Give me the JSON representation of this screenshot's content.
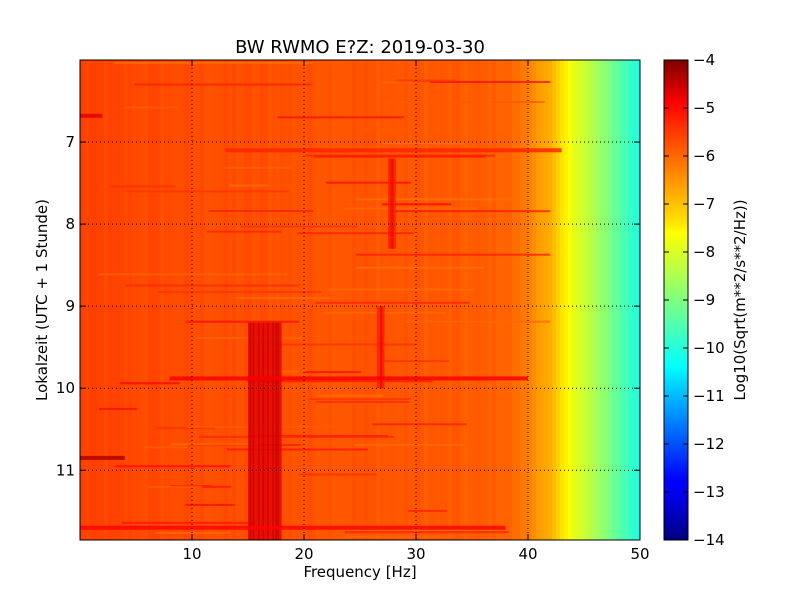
{
  "chart_data": {
    "type": "heatmap",
    "title": "BW RWMO E?Z: 2019-03-30",
    "xlabel": "Frequency [Hz]",
    "ylabel": "Lokalzeit (UTC + 1 Stunde)",
    "colorbar_label": "Log10(Sqrt(m**2/s**2/Hz))",
    "colormap": "jet",
    "xlim": [
      0,
      50
    ],
    "ylim": [
      11.85,
      6.0
    ],
    "clim": [
      -14,
      -4
    ],
    "xticks": [
      10,
      20,
      30,
      40,
      50
    ],
    "yticks": [
      7,
      8,
      9,
      10,
      11
    ],
    "colorbar_ticks": [
      -4,
      -5,
      -6,
      -7,
      -8,
      -9,
      -10,
      -11,
      -12,
      -13,
      -14
    ],
    "grid": true,
    "frequency_profile": {
      "frequency_hz": [
        0,
        10,
        20,
        30,
        38,
        40,
        42,
        43,
        44,
        46,
        48,
        50
      ],
      "level": [
        -5.9,
        -6.0,
        -6.05,
        -6.1,
        -6.2,
        -6.5,
        -7.0,
        -7.5,
        -7.9,
        -8.6,
        -9.3,
        -10.0
      ]
    },
    "features": [
      {
        "label": "band",
        "freq_range": [
          15,
          18
        ],
        "time_range": [
          9.2,
          11.85
        ],
        "level": -5.0
      },
      {
        "label": "band",
        "freq_range": [
          26.5,
          27.2
        ],
        "time_range": [
          9.0,
          10.0
        ],
        "level": -5.5
      },
      {
        "label": "band",
        "freq_range": [
          27.5,
          28.2
        ],
        "time_range": [
          7.2,
          8.3
        ],
        "level": -5.5
      },
      {
        "label": "line",
        "time": 9.88,
        "freq_range": [
          8,
          40
        ],
        "level": -5.2
      },
      {
        "label": "line",
        "time": 10.85,
        "freq_range": [
          0,
          4
        ],
        "level": -4.5
      },
      {
        "label": "line",
        "time": 11.7,
        "freq_range": [
          0,
          38
        ],
        "level": -5.3
      },
      {
        "label": "line",
        "time": 7.1,
        "freq_range": [
          13,
          43
        ],
        "level": -5.6
      },
      {
        "label": "line",
        "time": 6.68,
        "freq_range": [
          0,
          2
        ],
        "level": -5.0
      }
    ]
  }
}
